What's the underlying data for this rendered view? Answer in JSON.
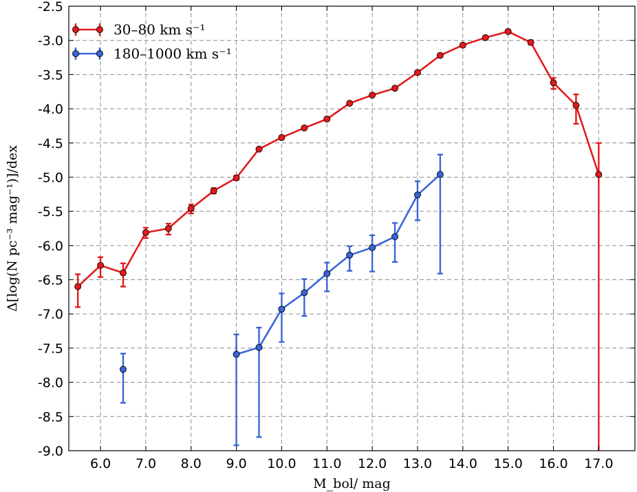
{
  "chart_data": {
    "type": "line",
    "xlabel": "M_bol/ mag",
    "ylabel": "Δ[log(N pc⁻³ mag⁻¹)]/dex",
    "xlim": [
      5.3,
      17.8
    ],
    "ylim": [
      -9.0,
      -2.5
    ],
    "xticks": [
      6.0,
      7.0,
      8.0,
      9.0,
      10.0,
      11.0,
      12.0,
      13.0,
      14.0,
      15.0,
      16.0,
      17.0
    ],
    "yticks": [
      -2.5,
      -3.0,
      -3.5,
      -4.0,
      -4.5,
      -5.0,
      -5.5,
      -6.0,
      -6.5,
      -7.0,
      -7.5,
      -8.0,
      -8.5,
      -9.0
    ],
    "grid": true,
    "legend_position": "top-left",
    "series": [
      {
        "name": "30–80 km s⁻¹",
        "color": "#e31a1c",
        "points": [
          {
            "x": 5.5,
            "y": -6.6,
            "lo": -6.9,
            "hi": -6.42
          },
          {
            "x": 6.0,
            "y": -6.29,
            "lo": -6.46,
            "hi": -6.17
          },
          {
            "x": 6.5,
            "y": -6.4,
            "lo": -6.6,
            "hi": -6.26
          },
          {
            "x": 7.0,
            "y": -5.81,
            "lo": -5.89,
            "hi": -5.74
          },
          {
            "x": 7.5,
            "y": -5.75,
            "lo": -5.84,
            "hi": -5.68
          },
          {
            "x": 8.0,
            "y": -5.46,
            "lo": -5.53,
            "hi": -5.4
          },
          {
            "x": 8.5,
            "y": -5.2,
            "lo": -5.24,
            "hi": -5.16
          },
          {
            "x": 9.0,
            "y": -5.01,
            "lo": -5.04,
            "hi": -4.98
          },
          {
            "x": 9.5,
            "y": -4.59,
            "lo": -4.61,
            "hi": -4.57
          },
          {
            "x": 10.0,
            "y": -4.42,
            "lo": -4.44,
            "hi": -4.4
          },
          {
            "x": 10.5,
            "y": -4.28,
            "lo": -4.3,
            "hi": -4.26
          },
          {
            "x": 11.0,
            "y": -4.15,
            "lo": -4.17,
            "hi": -4.13
          },
          {
            "x": 11.5,
            "y": -3.92,
            "lo": -3.94,
            "hi": -3.9
          },
          {
            "x": 12.0,
            "y": -3.8,
            "lo": -3.82,
            "hi": -3.78
          },
          {
            "x": 12.5,
            "y": -3.7,
            "lo": -3.72,
            "hi": -3.68
          },
          {
            "x": 13.0,
            "y": -3.47,
            "lo": -3.49,
            "hi": -3.45
          },
          {
            "x": 13.5,
            "y": -3.22,
            "lo": -3.24,
            "hi": -3.2
          },
          {
            "x": 14.0,
            "y": -3.07,
            "lo": -3.09,
            "hi": -3.05
          },
          {
            "x": 14.5,
            "y": -2.96,
            "lo": -2.98,
            "hi": -2.94
          },
          {
            "x": 15.0,
            "y": -2.87,
            "lo": -2.89,
            "hi": -2.85
          },
          {
            "x": 15.5,
            "y": -3.03,
            "lo": -3.06,
            "hi": -3.0
          },
          {
            "x": 16.0,
            "y": -3.62,
            "lo": -3.71,
            "hi": -3.55
          },
          {
            "x": 16.5,
            "y": -3.95,
            "lo": -4.22,
            "hi": -3.79
          },
          {
            "x": 17.0,
            "y": -4.96,
            "lo": -9.0,
            "hi": -4.5
          }
        ]
      },
      {
        "name": "180–1000 km s⁻¹",
        "color": "#3a65d6",
        "points": [
          {
            "x": 6.5,
            "y": -7.81,
            "lo": -8.3,
            "hi": -7.58,
            "connected": false
          },
          {
            "x": 9.0,
            "y": -7.59,
            "lo": -8.92,
            "hi": -7.3
          },
          {
            "x": 9.5,
            "y": -7.49,
            "lo": -8.8,
            "hi": -7.2
          },
          {
            "x": 10.0,
            "y": -6.93,
            "lo": -7.41,
            "hi": -6.7
          },
          {
            "x": 10.5,
            "y": -6.69,
            "lo": -7.03,
            "hi": -6.49
          },
          {
            "x": 11.0,
            "y": -6.41,
            "lo": -6.67,
            "hi": -6.25
          },
          {
            "x": 11.5,
            "y": -6.14,
            "lo": -6.37,
            "hi": -6.01
          },
          {
            "x": 12.0,
            "y": -6.03,
            "lo": -6.38,
            "hi": -5.85
          },
          {
            "x": 12.5,
            "y": -5.87,
            "lo": -6.24,
            "hi": -5.67
          },
          {
            "x": 13.0,
            "y": -5.26,
            "lo": -5.63,
            "hi": -5.06
          },
          {
            "x": 13.5,
            "y": -4.96,
            "lo": -6.41,
            "hi": -4.67
          }
        ]
      }
    ]
  }
}
